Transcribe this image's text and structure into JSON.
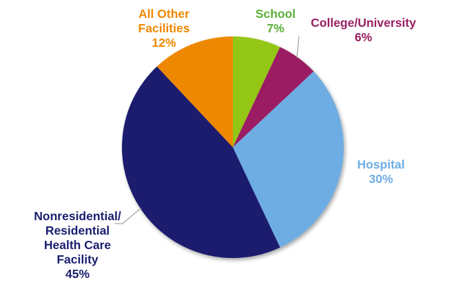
{
  "chart_data": {
    "type": "pie",
    "title": "",
    "start_angle_deg": 0,
    "direction": "clockwise",
    "slices": [
      {
        "name": "School",
        "label_lines": [
          "School"
        ],
        "value": 7,
        "pct_label": "7%",
        "color": "#94C617",
        "label_color": "#5BAF3A"
      },
      {
        "name": "College/University",
        "label_lines": [
          "College/University"
        ],
        "value": 6,
        "pct_label": "6%",
        "color": "#9B1F63",
        "label_color": "#9B1F63"
      },
      {
        "name": "Hospital",
        "label_lines": [
          "Hospital"
        ],
        "value": 30,
        "pct_label": "30%",
        "color": "#6EADE3",
        "label_color": "#6EADE3"
      },
      {
        "name": "Nonresidential/ Residential Health Care Facility",
        "label_lines": [
          "Nonresidential/",
          "Residential",
          "Health Care",
          "Facility"
        ],
        "value": 45,
        "pct_label": "45%",
        "color": "#1A1F6E",
        "label_color": "#1A1F6E"
      },
      {
        "name": "All Other Facilities",
        "label_lines": [
          "All Other",
          "Facilities"
        ],
        "value": 12,
        "pct_label": "12%",
        "color": "#EE8800",
        "label_color": "#EE8800"
      }
    ],
    "legend": "none (data labels outside slices)",
    "leader_line_color": "#A6A6A6"
  }
}
